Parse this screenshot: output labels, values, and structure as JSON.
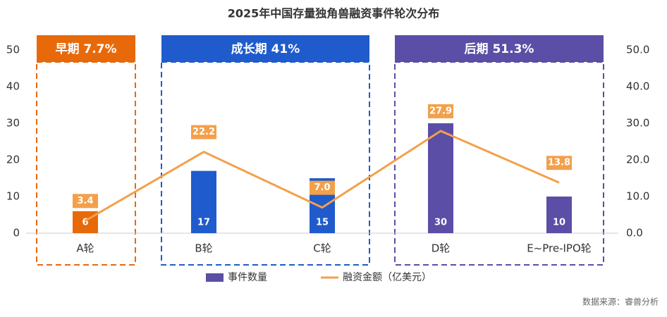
{
  "chart_data": {
    "type": "bar",
    "title": "2025年中国存量独角兽融资事件轮次分布",
    "categories": [
      "A轮",
      "B轮",
      "C轮",
      "D轮",
      "E~Pre-IPO轮"
    ],
    "series": [
      {
        "name": "事件数量",
        "color": "#5b4ea6",
        "colors": [
          "#e8690a",
          "#1f5bcc",
          "#1f5bcc",
          "#5b4ea6",
          "#5b4ea6"
        ],
        "values": [
          6,
          17,
          15,
          30,
          10
        ]
      },
      {
        "name": "融资金额（亿美元）",
        "type": "line",
        "axis": "y2",
        "color": "#f3a04b",
        "values": [
          3.4,
          22.2,
          7.0,
          27.9,
          13.8
        ],
        "value_labels": [
          "3.4",
          "22.2",
          "7.0",
          "27.9",
          "13.8"
        ]
      }
    ],
    "ylim": [
      0,
      50
    ],
    "yticks": [
      0,
      10,
      20,
      30,
      40,
      50
    ],
    "y2lim": [
      0,
      50
    ],
    "y2ticks": [
      {
        "value": 0,
        "label": "0.0"
      },
      {
        "value": 10,
        "label": "10.0"
      },
      {
        "value": 20,
        "label": "20.0"
      },
      {
        "value": 30,
        "label": "30.0"
      },
      {
        "value": 40,
        "label": "40.0"
      },
      {
        "value": 50,
        "label": "50.0"
      }
    ],
    "groups": [
      {
        "label": "早期 7.7%",
        "color": "#e8690a"
      },
      {
        "label": "成长期 41%",
        "color": "#1f5bcc"
      },
      {
        "label": "后期 51.3%",
        "color": "#5b4ea6"
      }
    ],
    "source": "数据来源：睿兽分析"
  }
}
